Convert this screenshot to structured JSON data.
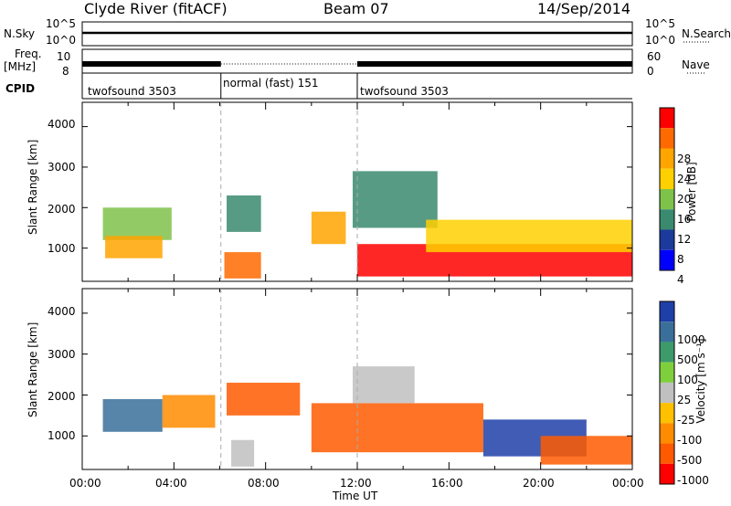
{
  "header": {
    "station": "Clyde River (fitACF)",
    "beam": "Beam 07",
    "date": "14/Sep/2014"
  },
  "panels": {
    "nsky": {
      "label": "N.Sky",
      "ticks_left": [
        "10^5",
        "10^0"
      ],
      "ticks_right": [
        "10^5",
        "10^0"
      ],
      "right_label": "N.Search"
    },
    "freq": {
      "label_line1": "Freq.",
      "label_line2": "[MHz]",
      "ticks_left": [
        "10",
        "8"
      ],
      "ticks_right": [
        "60",
        "0"
      ],
      "right_label": "Nave"
    },
    "cpid": {
      "label": "CPID",
      "segments": [
        "twofsound 3503",
        "normal (fast) 151",
        "twofsound 3503"
      ]
    }
  },
  "axes": {
    "ylabel": "Slant Range [km]",
    "yticks": [
      "4000",
      "3000",
      "2000",
      "1000"
    ],
    "xticks": [
      "00:00",
      "04:00",
      "08:00",
      "12:00",
      "16:00",
      "20:00",
      "00:00"
    ],
    "xlabel": "Time UT"
  },
  "colorbars": {
    "power": {
      "label": "Power [dB]",
      "ticks": [
        "28",
        "24",
        "20",
        "16",
        "12",
        "8",
        "4"
      ],
      "colors": [
        "#ff0000",
        "#ff6a00",
        "#ffa500",
        "#ffd000",
        "#7fc24a",
        "#3a8a70",
        "#1c3a9c",
        "#0000ff"
      ]
    },
    "velocity": {
      "label": "Velocity [m s⁻¹]",
      "ticks": [
        "1000",
        "500",
        "100",
        "25",
        "-25",
        "-100",
        "-500",
        "-1000"
      ],
      "colors": [
        "#1f3fa8",
        "#3a6f9a",
        "#3d9a6a",
        "#7fcf3c",
        "#c0c0c0",
        "#ffc000",
        "#ff8c00",
        "#ff5a00",
        "#ff0000"
      ]
    }
  },
  "chart_data": [
    {
      "type": "heatmap",
      "title": "",
      "xlabel": "Time UT",
      "ylabel": "Slant Range [km]",
      "xlim": [
        "00:00",
        "24:00"
      ],
      "ylim": [
        180,
        4600
      ],
      "colorbar": "Power [dB]",
      "regions": [
        {
          "t_start": 0.9,
          "t_end": 3.9,
          "r_min": 1200,
          "r_max": 2000,
          "value": 12
        },
        {
          "t_start": 1.0,
          "t_end": 3.5,
          "r_min": 750,
          "r_max": 1300,
          "value": 22
        },
        {
          "t_start": 6.3,
          "t_end": 7.8,
          "r_min": 1400,
          "r_max": 2300,
          "value": 10
        },
        {
          "t_start": 6.2,
          "t_end": 7.8,
          "r_min": 250,
          "r_max": 900,
          "value": 26
        },
        {
          "t_start": 10.0,
          "t_end": 11.5,
          "r_min": 1100,
          "r_max": 1900,
          "value": 22
        },
        {
          "t_start": 11.8,
          "t_end": 15.5,
          "r_min": 1500,
          "r_max": 2900,
          "value": 8
        },
        {
          "t_start": 12.0,
          "t_end": 24.0,
          "r_min": 300,
          "r_max": 1100,
          "value": 28
        },
        {
          "t_start": 15.0,
          "t_end": 24.0,
          "r_min": 900,
          "r_max": 1700,
          "value": 18
        }
      ]
    },
    {
      "type": "heatmap",
      "title": "",
      "xlabel": "Time UT",
      "ylabel": "Slant Range [km]",
      "xlim": [
        "00:00",
        "24:00"
      ],
      "ylim": [
        180,
        4600
      ],
      "colorbar": "Velocity [m s⁻¹]",
      "regions": [
        {
          "t_start": 0.9,
          "t_end": 3.5,
          "r_min": 1100,
          "r_max": 1900,
          "value": 500
        },
        {
          "t_start": 3.5,
          "t_end": 5.8,
          "r_min": 1200,
          "r_max": 2000,
          "value": -100
        },
        {
          "t_start": 6.3,
          "t_end": 9.5,
          "r_min": 1500,
          "r_max": 2300,
          "value": -500
        },
        {
          "t_start": 6.5,
          "t_end": 7.5,
          "r_min": 250,
          "r_max": 900,
          "value": 0
        },
        {
          "t_start": 10.0,
          "t_end": 17.5,
          "r_min": 600,
          "r_max": 1800,
          "value": -500
        },
        {
          "t_start": 11.8,
          "t_end": 14.5,
          "r_min": 1800,
          "r_max": 2700,
          "value": 0
        },
        {
          "t_start": 17.5,
          "t_end": 22.0,
          "r_min": 500,
          "r_max": 1400,
          "value": 1000
        },
        {
          "t_start": 20.0,
          "t_end": 24.0,
          "r_min": 300,
          "r_max": 1000,
          "value": -500
        }
      ]
    }
  ]
}
